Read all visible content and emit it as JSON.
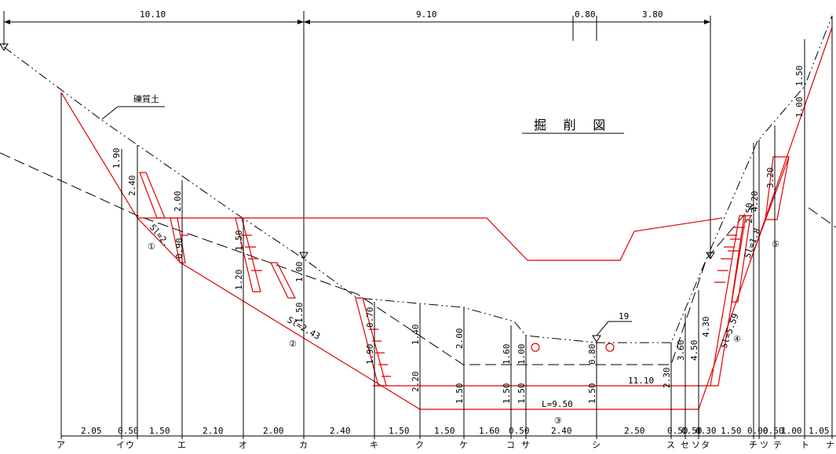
{
  "title": "掘 削 図",
  "soil_label": "礫質土",
  "top_dims": [
    "10.10",
    "9.10",
    "0.80",
    "3.80"
  ],
  "right_dims": [
    "1.50",
    "1.00",
    "3.20"
  ],
  "mid_labels": {
    "a190": "1.90",
    "a240": "2.40",
    "a200": "2.00",
    "a150": "1.50",
    "a120": "1.20",
    "a100": "1.00",
    "a150b": "1.50",
    "a090": "0.90",
    "a070": "0.70",
    "a140": "1.40",
    "a200b": "2.00",
    "a160": "1.60",
    "a100b": "1.00",
    "a080": "0.80",
    "a190b": "1.90",
    "a220": "2.20",
    "a150c": "1.50",
    "a150d": "1.50",
    "a150e": "1.50",
    "a150f": "1.50",
    "a230": "2.30",
    "a360": "3.60",
    "a450": "4.50",
    "a430": "4.30",
    "a420": "4.20",
    "a250": "2.50",
    "a100c": "1.00"
  },
  "slope_labels": [
    "Sl=2.",
    "Sl=2.43",
    "Sl=5.59",
    "Sl=1.8"
  ],
  "markers": {
    "m19": "19",
    "m1110": "11.10",
    "mL": "L=9.50"
  },
  "circled": [
    "①",
    "②",
    "③",
    "④",
    "⑤"
  ],
  "bottom_dims": [
    "2.05",
    "0.50",
    "1.50",
    "2.10",
    "2.00",
    "2.40",
    "1.50",
    "1.50",
    "1.60",
    "0.50",
    "2.40",
    "2.50",
    "0.50",
    "0.50",
    "0.30",
    "1.50",
    "0.00",
    "0.50",
    "1.00",
    "1.05"
  ],
  "stations": [
    "ア",
    "イ",
    "ウ",
    "エ",
    "オ",
    "カ",
    "キ",
    "ク",
    "ケ",
    "コ",
    "サ",
    "シ",
    "ス",
    "セ",
    "ソ",
    "タ",
    "チ",
    "ツ",
    "テ",
    "ト",
    "ナ"
  ]
}
